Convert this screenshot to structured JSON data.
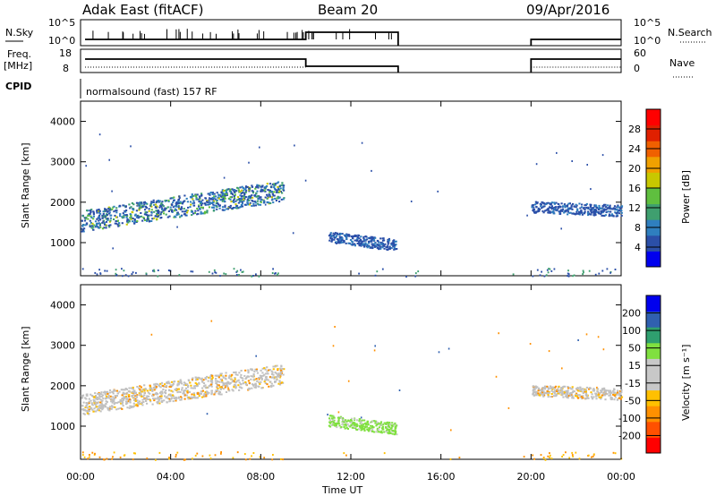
{
  "header": {
    "title": "Adak East (fitACF)",
    "beam": "Beam 20",
    "date": "09/Apr/2016"
  },
  "top_strip": {
    "nsky_label": "N.Sky",
    "nsky_ticks": [
      "10^5",
      "10^0"
    ],
    "nsearch_label": "N.Search",
    "nsearch_ticks": [
      "10^5",
      "10^0"
    ],
    "freq_label": "Freq.",
    "freq_unit": "[MHz]",
    "freq_ticks": [
      "18",
      "8"
    ],
    "nave_label": "Nave",
    "nave_ticks": [
      "60",
      "0"
    ],
    "cpid_label": "CPID",
    "cpid_text": "normalsound (fast) 157 RF"
  },
  "colors": {
    "power_scale": [
      "#0000ee",
      "#2b4fa8",
      "#2f7fbf",
      "#3f9f6f",
      "#5fbf3f",
      "#c8c800",
      "#f0a000",
      "#f06000",
      "#e02000",
      "#ff0000"
    ],
    "velocity_scale": [
      "#ff0000",
      "#ff5000",
      "#ff9000",
      "#ffc000",
      "#c8c8c8",
      "#c8c8c8",
      "#80e040",
      "#2f9f6f",
      "#3060b0",
      "#0000ee"
    ],
    "ground_scatter": "#c0c0c0"
  },
  "chart_data": [
    {
      "type": "heatmap",
      "title": "",
      "xlabel": "Time UT",
      "ylabel": "Slant Range [km]",
      "x_ticks": [
        "00:00",
        "04:00",
        "08:00",
        "12:00",
        "16:00",
        "20:00",
        "00:00"
      ],
      "y_ticks": [
        "4000",
        "3000",
        "2000",
        "1000"
      ],
      "ylim": [
        180,
        4500
      ],
      "xlim_hours": [
        0,
        24
      ],
      "colorbar": {
        "label": "Power [dB]",
        "ticks": [
          "28",
          "24",
          "20",
          "16",
          "12",
          "8",
          "4"
        ],
        "range": [
          0,
          30
        ]
      },
      "scatter_regions": [
        {
          "start_hour": 0.0,
          "end_hour": 9.0,
          "range_start_km": 1550,
          "range_end_km": 2300,
          "value_level": "4-20"
        },
        {
          "start_hour": 11.0,
          "end_hour": 14.0,
          "range_start_km": 1150,
          "range_end_km": 950,
          "value_level": "4-8"
        },
        {
          "start_hour": 20.0,
          "end_hour": 24.0,
          "range_start_km": 1900,
          "range_end_km": 1800,
          "value_level": "4-8"
        }
      ]
    },
    {
      "type": "heatmap",
      "title": "",
      "xlabel": "Time UT",
      "ylabel": "Slant Range [km]",
      "x_ticks": [
        "00:00",
        "04:00",
        "08:00",
        "12:00",
        "16:00",
        "20:00",
        "00:00"
      ],
      "y_ticks": [
        "4000",
        "3000",
        "2000",
        "1000"
      ],
      "ylim": [
        180,
        4500
      ],
      "xlim_hours": [
        0,
        24
      ],
      "colorbar": {
        "label": "Velocity [m s⁻¹]",
        "ticks": [
          "200",
          "100",
          "50",
          "15",
          "-15",
          "-50",
          "-100",
          "-200"
        ],
        "range": [
          -250,
          250
        ]
      },
      "scatter_regions": [
        {
          "start_hour": 0.0,
          "end_hour": 9.0,
          "range_start_km": 1550,
          "range_end_km": 2300,
          "value_level": "ground scatter (grey)"
        },
        {
          "start_hour": 11.0,
          "end_hour": 14.0,
          "range_start_km": 1150,
          "range_end_km": 950,
          "value_level": "15-50"
        },
        {
          "start_hour": 20.0,
          "end_hour": 24.0,
          "range_start_km": 1900,
          "range_end_km": 1800,
          "value_level": "ground scatter (grey)"
        }
      ]
    }
  ]
}
